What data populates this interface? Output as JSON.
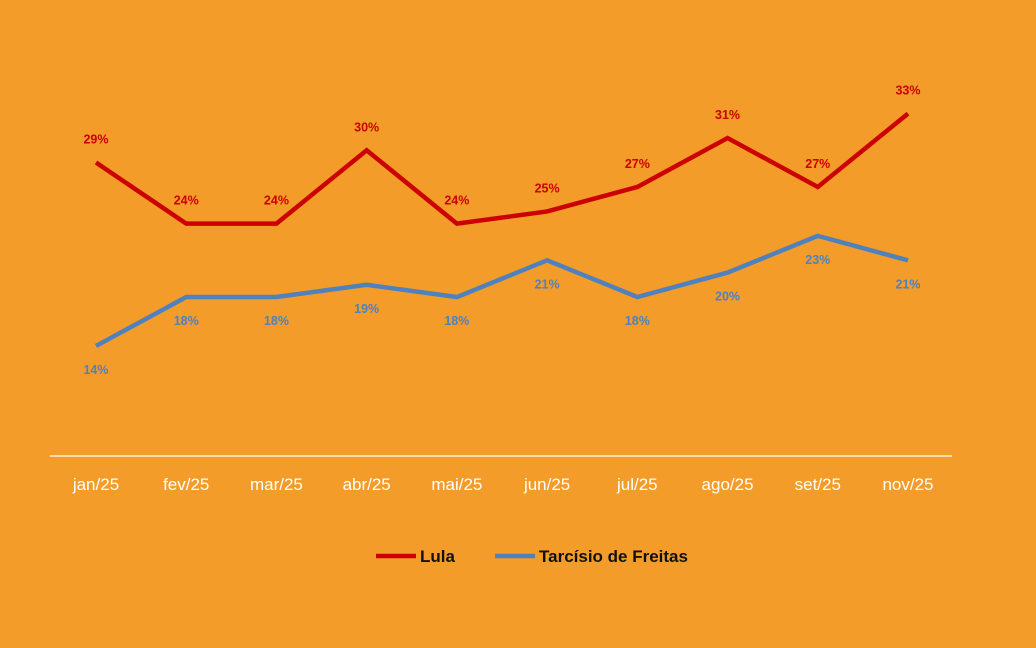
{
  "chart_data": {
    "type": "line",
    "categories": [
      "jan/25",
      "fev/25",
      "mar/25",
      "abr/25",
      "mai/25",
      "jun/25",
      "jul/25",
      "ago/25",
      "set/25",
      "nov/25"
    ],
    "series": [
      {
        "name": "Lula",
        "color": "#CC0000",
        "values": [
          29,
          24,
          24,
          30,
          24,
          25,
          27,
          31,
          27,
          33
        ],
        "value_labels": [
          "29%",
          "24%",
          "24%",
          "30%",
          "24%",
          "25%",
          "27%",
          "31%",
          "27%",
          "33%"
        ]
      },
      {
        "name": "Tarcísio de Freitas",
        "color": "#4F81BD",
        "values": [
          14,
          18,
          18,
          19,
          18,
          21,
          18,
          20,
          23,
          21
        ],
        "value_labels": [
          "14%",
          "18%",
          "18%",
          "19%",
          "18%",
          "21%",
          "18%",
          "20%",
          "23%",
          "21%"
        ]
      }
    ],
    "title": "",
    "xlabel": "",
    "ylabel": "",
    "ylim": [
      5,
      40
    ],
    "grid": false,
    "legend": "bottom",
    "background": "#F49C2A",
    "axis_color": "#FFFFFF"
  }
}
